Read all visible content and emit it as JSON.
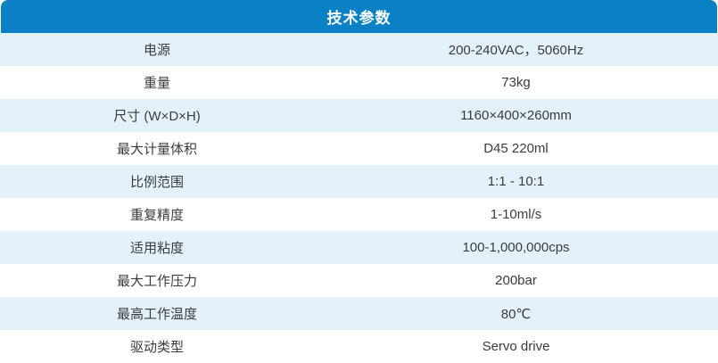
{
  "table": {
    "title": "技术参数",
    "columns": {
      "label": "parameter",
      "value": "value"
    },
    "rows": [
      {
        "label": "电源",
        "value": "200-240VAC，5060Hz"
      },
      {
        "label": "重量",
        "value": "73kg"
      },
      {
        "label": "尺寸 (W×D×H)",
        "value": "1160×400×260mm"
      },
      {
        "label": "最大计量体积",
        "value": "D45 220ml"
      },
      {
        "label": "比例范围",
        "value": "1:1 - 10:1"
      },
      {
        "label": "重复精度",
        "value": "1-10ml/s"
      },
      {
        "label": "适用粘度",
        "value": "100-1,000,000cps"
      },
      {
        "label": "最大工作压力",
        "value": "200bar"
      },
      {
        "label": "最高工作温度",
        "value": "80℃"
      },
      {
        "label": "驱动类型",
        "value": "Servo drive"
      }
    ],
    "colors": {
      "header_bg": "#0981c4",
      "header_text": "#ffffff",
      "row_bg": "#ffffff",
      "row_alt_bg": "#e3f1fb",
      "body_text": "#3c3c3c"
    }
  }
}
